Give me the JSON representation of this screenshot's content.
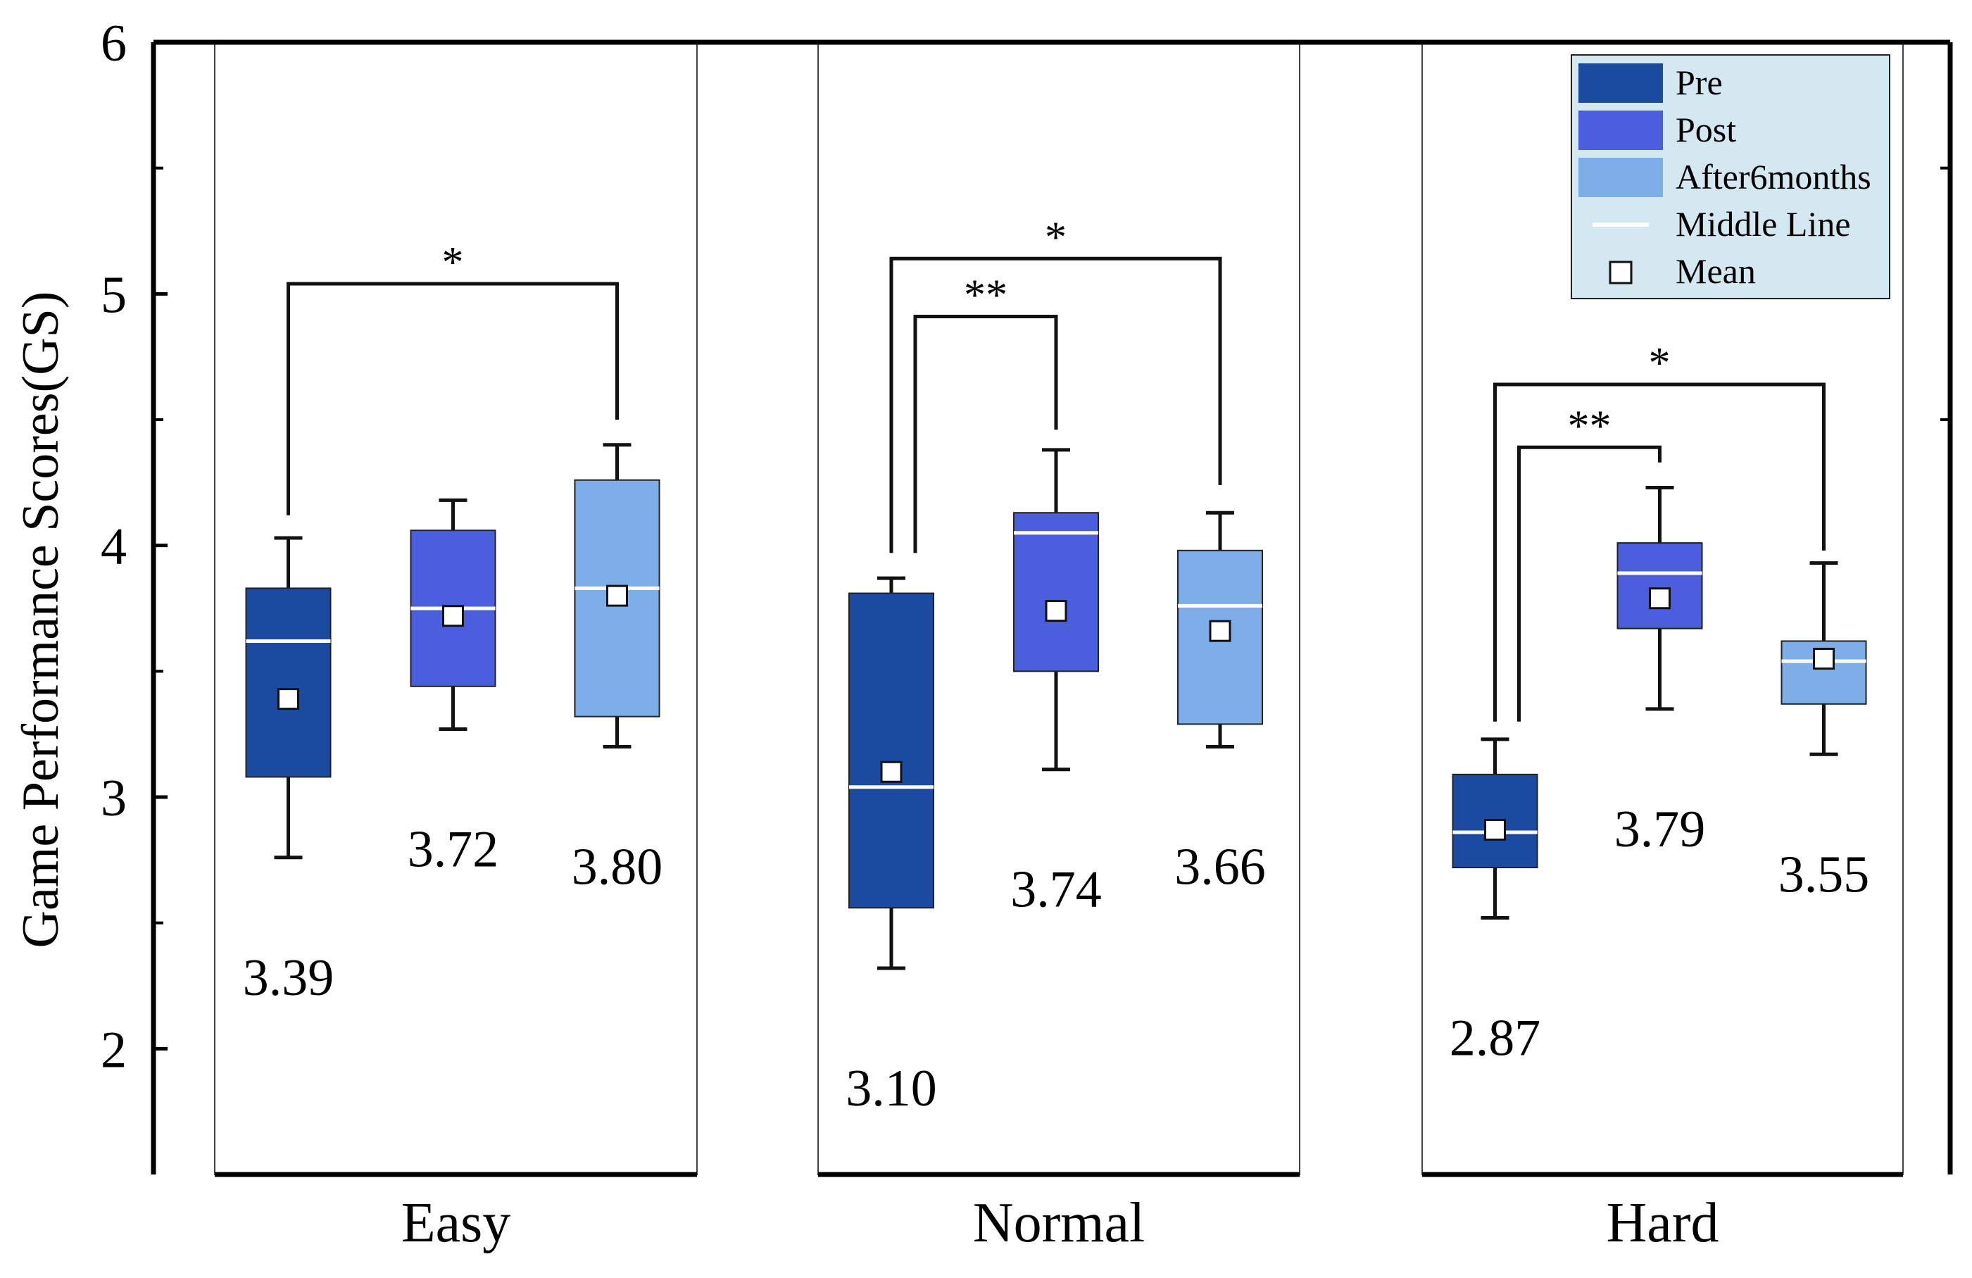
{
  "chart_data": {
    "type": "box",
    "ylabel": "Game Performance Scores(GS)",
    "xlabel": "",
    "ylim": [
      1.5,
      6
    ],
    "yticks": [
      2,
      3,
      4,
      5,
      6
    ],
    "yticks_minor": [
      2.5,
      3.5,
      4.5,
      5.5
    ],
    "categories": [
      "Easy",
      "Normal",
      "Hard"
    ],
    "series": [
      {
        "name": "Pre",
        "color": "#1A4BA0"
      },
      {
        "name": "Post",
        "color": "#4A5EDE"
      },
      {
        "name": "After6months",
        "color": "#7DAEE8"
      }
    ],
    "legend": {
      "position": "top-right",
      "background": "#D4E8F2",
      "middle_line_label": "Middle Line",
      "mean_label": "Mean"
    },
    "groups": [
      {
        "category": "Easy",
        "boxes": [
          {
            "series": "Pre",
            "min": 2.76,
            "q1": 3.08,
            "median": 3.62,
            "q3": 3.83,
            "max": 4.03,
            "mean": 3.39,
            "mean_label": "3.39"
          },
          {
            "series": "Post",
            "min": 3.27,
            "q1": 3.44,
            "median": 3.75,
            "q3": 4.06,
            "max": 4.18,
            "mean": 3.72,
            "mean_label": "3.72"
          },
          {
            "series": "After6months",
            "min": 3.2,
            "q1": 3.32,
            "median": 3.83,
            "q3": 4.26,
            "max": 4.4,
            "mean": 3.8,
            "mean_label": "3.80"
          }
        ],
        "brackets": [
          {
            "from": 0,
            "to": 2,
            "label": "*",
            "y": 5.04,
            "left_end": 4.12,
            "right_end": 4.5
          }
        ]
      },
      {
        "category": "Normal",
        "boxes": [
          {
            "series": "Pre",
            "min": 2.32,
            "q1": 2.56,
            "median": 3.04,
            "q3": 3.81,
            "max": 3.87,
            "mean": 3.1,
            "mean_label": "3.10"
          },
          {
            "series": "Post",
            "min": 3.11,
            "q1": 3.5,
            "median": 4.05,
            "q3": 4.13,
            "max": 4.38,
            "mean": 3.74,
            "mean_label": "3.74"
          },
          {
            "series": "After6months",
            "min": 3.2,
            "q1": 3.29,
            "median": 3.76,
            "q3": 3.98,
            "max": 4.13,
            "mean": 3.66,
            "mean_label": "3.66"
          }
        ],
        "brackets": [
          {
            "from": 0,
            "to": 2,
            "label": "*",
            "y": 5.14,
            "left_end": 3.97,
            "right_end": 4.24
          },
          {
            "from": 0,
            "to": 1,
            "label": "**",
            "y": 4.91,
            "left_end": 3.97,
            "right_end": 4.46
          }
        ]
      },
      {
        "category": "Hard",
        "boxes": [
          {
            "series": "Pre",
            "min": 2.52,
            "q1": 2.72,
            "median": 2.86,
            "q3": 3.09,
            "max": 3.23,
            "mean": 2.87,
            "mean_label": "2.87"
          },
          {
            "series": "Post",
            "min": 3.35,
            "q1": 3.67,
            "median": 3.89,
            "q3": 4.01,
            "max": 4.23,
            "mean": 3.79,
            "mean_label": "3.79"
          },
          {
            "series": "After6months",
            "min": 3.17,
            "q1": 3.37,
            "median": 3.54,
            "q3": 3.62,
            "max": 3.93,
            "mean": 3.55,
            "mean_label": "3.55"
          }
        ],
        "brackets": [
          {
            "from": 0,
            "to": 2,
            "label": "*",
            "y": 4.64,
            "left_end": 3.3,
            "right_end": 3.98
          },
          {
            "from": 0,
            "to": 1,
            "label": "**",
            "y": 4.39,
            "left_end": 3.3,
            "right_end": 4.33
          }
        ]
      }
    ]
  }
}
